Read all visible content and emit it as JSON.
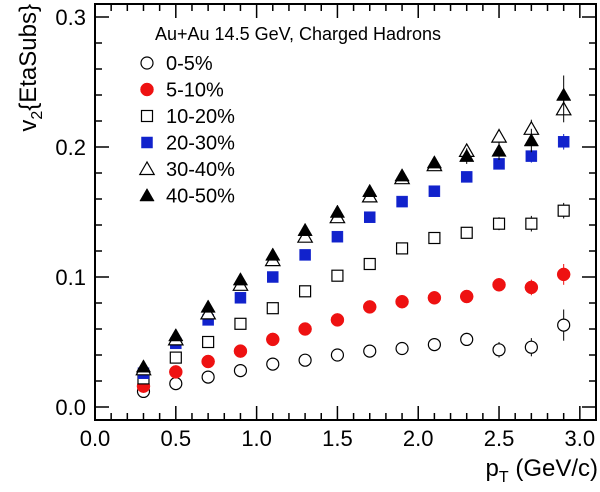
{
  "chart_data": {
    "type": "scatter",
    "title": "Au+Au 14.5 GeV, Charged Hadrons",
    "xlabel_main": "p",
    "xlabel_sub": "T",
    "xlabel_rest": " (GeV/c)",
    "ylabel_main": "v",
    "ylabel_sub": "2",
    "ylabel_rest": "{EtaSubs}",
    "xlim": [
      0.0,
      3.1
    ],
    "ylim": [
      -0.01,
      0.31
    ],
    "xticks": [
      "0.0",
      "0.5",
      "1.0",
      "1.5",
      "2.0",
      "2.5",
      "3.0"
    ],
    "yticks": [
      "0.0",
      "0.1",
      "0.2",
      "0.3"
    ],
    "legend_placement": "top-left",
    "grid": false,
    "x": [
      0.3,
      0.5,
      0.7,
      0.9,
      1.1,
      1.3,
      1.5,
      1.7,
      1.9,
      2.1,
      2.3,
      2.5,
      2.7,
      2.9
    ],
    "series": [
      {
        "name": "0-5%",
        "marker": "circle-open",
        "color": "#000000",
        "values": [
          0.012,
          0.018,
          0.023,
          0.028,
          0.033,
          0.036,
          0.04,
          0.043,
          0.045,
          0.048,
          0.052,
          0.044,
          0.046,
          0.063
        ],
        "errors": [
          0.002,
          0.002,
          0.002,
          0.002,
          0.002,
          0.002,
          0.002,
          0.003,
          0.003,
          0.004,
          0.005,
          0.006,
          0.007,
          0.012
        ]
      },
      {
        "name": "5-10%",
        "marker": "circle-filled",
        "color": "#ee1111",
        "values": [
          0.016,
          0.027,
          0.035,
          0.043,
          0.052,
          0.06,
          0.067,
          0.077,
          0.081,
          0.084,
          0.085,
          0.094,
          0.092,
          0.102
        ],
        "errors": [
          0.002,
          0.002,
          0.002,
          0.002,
          0.002,
          0.002,
          0.002,
          0.003,
          0.003,
          0.003,
          0.004,
          0.005,
          0.006,
          0.008
        ]
      },
      {
        "name": "10-20%",
        "marker": "square-open",
        "color": "#000000",
        "values": [
          0.022,
          0.038,
          0.05,
          0.064,
          0.076,
          0.089,
          0.101,
          0.11,
          0.122,
          0.13,
          0.134,
          0.141,
          0.141,
          0.151
        ],
        "errors": [
          0.002,
          0.002,
          0.002,
          0.002,
          0.002,
          0.002,
          0.002,
          0.003,
          0.003,
          0.004,
          0.004,
          0.005,
          0.006,
          0.006
        ]
      },
      {
        "name": "20-30%",
        "marker": "square-filled",
        "color": "#1122cc",
        "values": [
          0.026,
          0.049,
          0.067,
          0.084,
          0.1,
          0.117,
          0.131,
          0.146,
          0.158,
          0.166,
          0.177,
          0.187,
          0.193,
          0.204
        ],
        "errors": [
          0.002,
          0.002,
          0.002,
          0.002,
          0.002,
          0.002,
          0.002,
          0.003,
          0.003,
          0.003,
          0.004,
          0.004,
          0.005,
          0.006
        ]
      },
      {
        "name": "30-40%",
        "marker": "triangle-open",
        "color": "#000000",
        "values": [
          0.029,
          0.052,
          0.072,
          0.094,
          0.113,
          0.131,
          0.146,
          0.162,
          0.176,
          0.186,
          0.197,
          0.208,
          0.214,
          0.229
        ],
        "errors": [
          0.002,
          0.002,
          0.002,
          0.002,
          0.002,
          0.002,
          0.002,
          0.003,
          0.004,
          0.004,
          0.005,
          0.006,
          0.007,
          0.01
        ]
      },
      {
        "name": "40-50%",
        "marker": "triangle-filled",
        "color": "#000000",
        "values": [
          0.031,
          0.055,
          0.077,
          0.098,
          0.117,
          0.136,
          0.15,
          0.166,
          0.178,
          0.188,
          0.193,
          0.197,
          0.205,
          0.24
        ],
        "errors": [
          0.002,
          0.002,
          0.002,
          0.002,
          0.002,
          0.002,
          0.003,
          0.003,
          0.004,
          0.004,
          0.006,
          0.007,
          0.009,
          0.015
        ]
      }
    ]
  }
}
